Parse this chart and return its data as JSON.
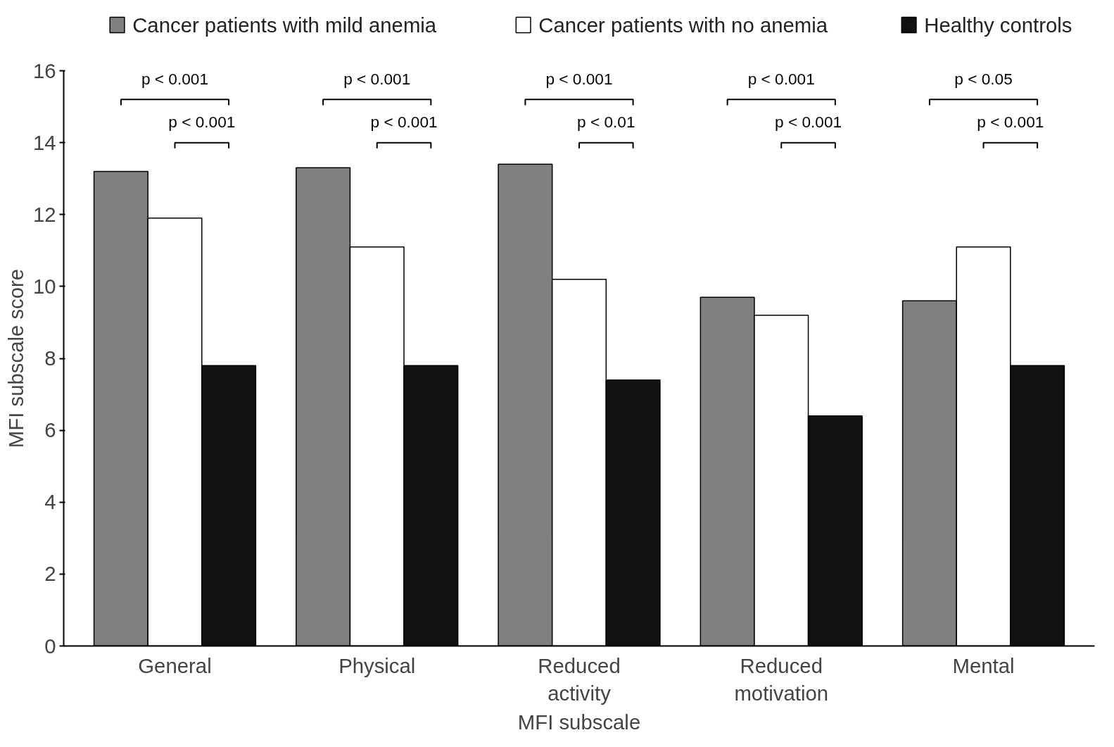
{
  "chart_data": {
    "type": "bar",
    "xlabel": "MFI subscale",
    "ylabel": "MFI subscale score",
    "categories": [
      "General",
      "Physical",
      "Reduced\nactivity",
      "Reduced\nmotivation",
      "Mental"
    ],
    "series": [
      {
        "name": "Cancer patients with mild anemia",
        "color": "#808080",
        "values": [
          13.2,
          13.3,
          13.4,
          9.7,
          9.6
        ]
      },
      {
        "name": "Cancer patients with no anemia",
        "color": "#ffffff",
        "values": [
          11.9,
          11.1,
          10.2,
          9.2,
          11.1
        ]
      },
      {
        "name": "Healthy controls",
        "color": "#111111",
        "values": [
          7.8,
          7.8,
          7.4,
          6.4,
          7.8
        ]
      }
    ],
    "ylim": [
      0,
      16
    ],
    "yticks": [
      0,
      2,
      4,
      6,
      8,
      10,
      12,
      14,
      16
    ],
    "grid": false,
    "legend": "top",
    "annotations": [
      "p < 0.001",
      "p < 0.001",
      "p < 0.001",
      "p < 0.001",
      "p < 0.001",
      "p < 0.01",
      "p < 0.001",
      "p < 0.001",
      "p < 0.05",
      "p < 0.001"
    ]
  }
}
